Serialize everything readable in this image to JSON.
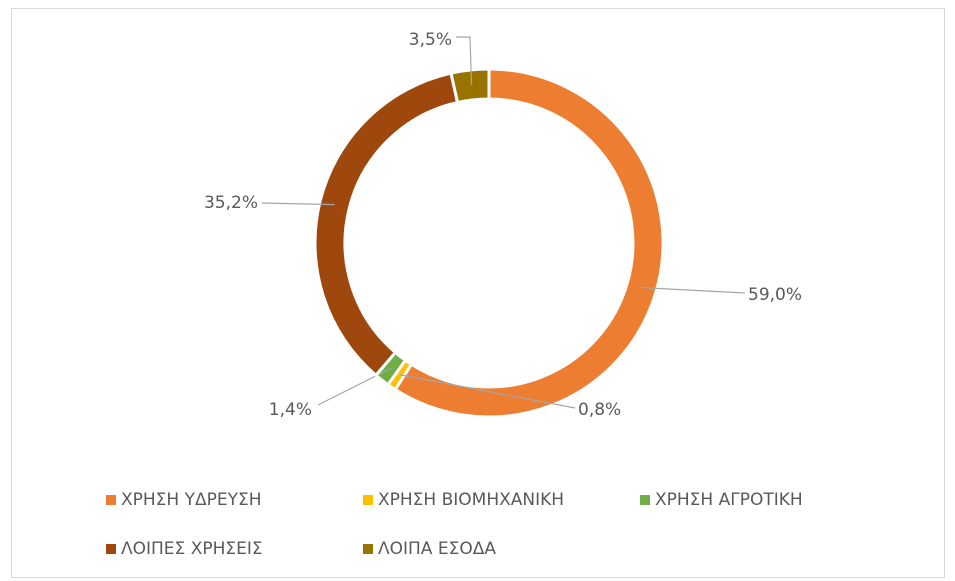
{
  "chart_data": {
    "type": "donut",
    "categories": [
      "ΧΡΗΣΗ ΥΔΡΕΥΣΗ",
      "ΧΡΗΣΗ ΒΙΟΜΗΧΑΝΙΚΗ",
      "ΧΡΗΣΗ ΑΓΡΟΤΙΚΗ",
      "ΛΟΙΠΕΣ ΧΡΗΣΕΙΣ",
      "ΛΟΙΠΑ ΕΣΟΔΑ"
    ],
    "values": [
      59.0,
      0.8,
      1.4,
      35.2,
      3.5
    ],
    "value_labels": [
      "59,0%",
      "0,8%",
      "1,4%",
      "35,2%",
      "3,5%"
    ],
    "colors": [
      "#ED7D31",
      "#FFC000",
      "#70AD47",
      "#9E480E",
      "#997300"
    ],
    "legend": "bottom"
  }
}
